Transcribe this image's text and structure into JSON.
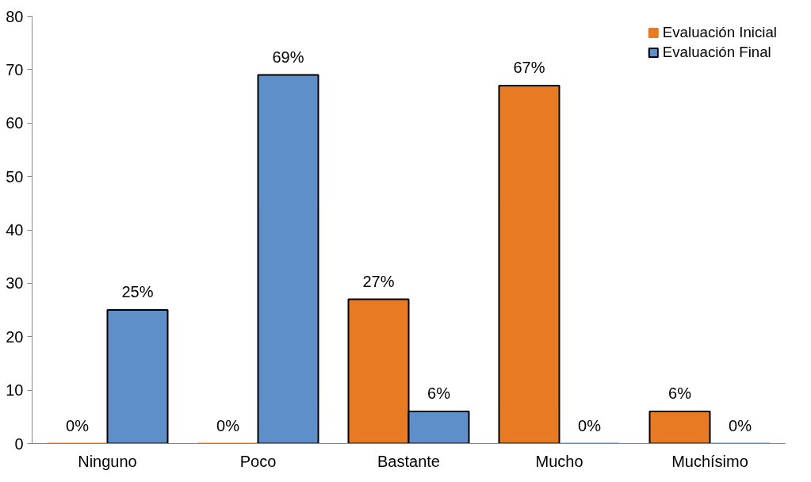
{
  "chart_data": {
    "type": "bar",
    "categories": [
      "Ninguno",
      "Poco",
      "Bastante",
      "Mucho",
      "Muchísimo"
    ],
    "series": [
      {
        "name": "Evaluación Inicial",
        "color": "#e87a24",
        "values": [
          0,
          0,
          27,
          67,
          6
        ],
        "value_labels": [
          "0%",
          "0%",
          "27%",
          "67%",
          "6%"
        ]
      },
      {
        "name": "Evaluación Final",
        "color": "#5f8fc8",
        "values": [
          25,
          69,
          6,
          0,
          0
        ],
        "value_labels": [
          "25%",
          "69%",
          "6%",
          "0%",
          "0%"
        ]
      }
    ],
    "ylim": [
      0,
      80
    ],
    "yticks": [
      0,
      10,
      20,
      30,
      40,
      50,
      60,
      70,
      80
    ],
    "grid": false,
    "legend": "top right"
  }
}
